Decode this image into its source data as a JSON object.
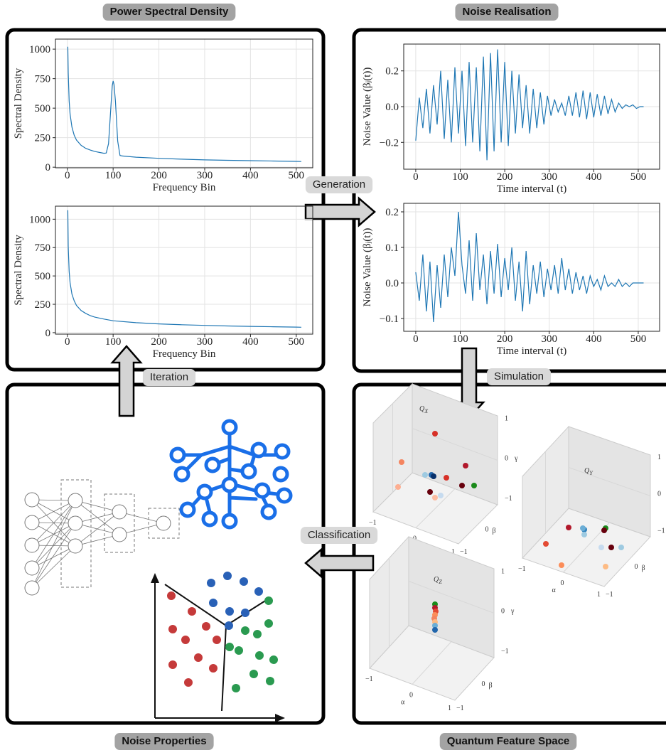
{
  "panels": {
    "psd": "Power Spectral Density",
    "noise": "Noise Realisation",
    "properties": "Noise Properties",
    "feature_space": "Quantum Feature Space"
  },
  "arrows": {
    "generation": "Generation",
    "simulation": "Simulation",
    "classification": "Classification",
    "iteration": "Iteration"
  },
  "chart_data": [
    {
      "type": "line",
      "xlabel": "Frequency Bin",
      "ylabel": "Spectral Density",
      "color": "#1f77b4",
      "x": [
        1,
        2,
        4,
        6,
        10,
        15,
        20,
        30,
        40,
        50,
        60,
        70,
        80,
        85,
        90,
        95,
        98,
        100,
        102,
        105,
        110,
        115,
        120,
        150,
        200,
        250,
        300,
        350,
        400,
        450,
        500,
        511
      ],
      "values": [
        1020,
        800,
        560,
        450,
        340,
        270,
        230,
        185,
        160,
        145,
        133,
        125,
        118,
        120,
        200,
        500,
        690,
        730,
        700,
        560,
        220,
        100,
        95,
        85,
        75,
        68,
        62,
        58,
        55,
        52,
        49,
        48
      ],
      "xlim": [
        -26,
        536
      ],
      "ylim": [
        -5,
        1085
      ],
      "xticks": [
        0,
        100,
        200,
        300,
        400,
        500
      ],
      "yticks": [
        0,
        250,
        500,
        750,
        1000
      ],
      "grid": true
    },
    {
      "type": "line",
      "xlabel": "Frequency Bin",
      "ylabel": "Spectral Density",
      "color": "#1f77b4",
      "x": [
        1,
        2,
        4,
        6,
        10,
        15,
        20,
        30,
        40,
        50,
        60,
        80,
        100,
        150,
        200,
        250,
        300,
        350,
        400,
        450,
        500,
        511
      ],
      "values": [
        1080,
        760,
        540,
        440,
        340,
        280,
        240,
        195,
        170,
        150,
        137,
        120,
        105,
        88,
        77,
        70,
        64,
        59,
        55,
        52,
        49,
        48
      ],
      "xlim": [
        -26,
        536
      ],
      "ylim": [
        -13,
        1115
      ],
      "xticks": [
        0,
        100,
        200,
        300,
        400,
        500
      ],
      "yticks": [
        0,
        250,
        500,
        750,
        1000
      ],
      "grid": true
    },
    {
      "type": "line",
      "xlabel": "Time interval (t)",
      "ylabel": "Noise Value (βⱼ(t))",
      "color": "#1f77b4",
      "x": [
        0,
        8,
        16,
        24,
        32,
        40,
        48,
        56,
        64,
        72,
        80,
        88,
        96,
        104,
        112,
        120,
        128,
        136,
        144,
        152,
        160,
        168,
        176,
        184,
        192,
        200,
        208,
        216,
        224,
        232,
        240,
        248,
        256,
        264,
        272,
        280,
        288,
        296,
        304,
        312,
        320,
        328,
        336,
        344,
        352,
        360,
        368,
        376,
        384,
        392,
        400,
        408,
        416,
        424,
        432,
        440,
        448,
        456,
        464,
        472,
        480,
        488,
        496,
        504,
        512
      ],
      "values": [
        -0.19,
        0.05,
        -0.12,
        0.1,
        -0.15,
        0.12,
        -0.1,
        0.2,
        -0.18,
        0.15,
        -0.2,
        0.22,
        -0.15,
        0.2,
        -0.22,
        0.25,
        -0.2,
        0.22,
        -0.25,
        0.28,
        -0.3,
        0.3,
        -0.25,
        0.32,
        -0.2,
        0.25,
        -0.22,
        0.2,
        -0.15,
        0.18,
        -0.12,
        0.12,
        -0.15,
        0.1,
        -0.12,
        0.08,
        -0.1,
        0.06,
        -0.05,
        0.04,
        -0.03,
        0.02,
        -0.05,
        0.06,
        -0.05,
        0.08,
        -0.06,
        0.09,
        -0.07,
        0.08,
        -0.06,
        0.07,
        -0.05,
        0.06,
        -0.04,
        0.04,
        -0.03,
        0.02,
        -0.01,
        0.01,
        0,
        0.01,
        -0.01,
        0,
        0
      ],
      "xlim": [
        -27,
        548
      ],
      "ylim": [
        -0.35,
        0.35
      ],
      "xticks": [
        0,
        100,
        200,
        300,
        400,
        500
      ],
      "yticks": [
        {
          "value": -0.2,
          "label": "−0.2"
        },
        {
          "value": 0,
          "label": "0.0"
        },
        0.2
      ],
      "grid": true
    },
    {
      "type": "line",
      "xlabel": "Time interval (t)",
      "ylabel": "Noise Value (βⱼ(t))",
      "color": "#1f77b4",
      "x": [
        0,
        8,
        16,
        24,
        32,
        40,
        48,
        56,
        64,
        72,
        80,
        88,
        96,
        104,
        112,
        120,
        128,
        136,
        144,
        152,
        160,
        168,
        176,
        184,
        192,
        200,
        208,
        216,
        224,
        232,
        240,
        248,
        256,
        264,
        272,
        280,
        288,
        296,
        304,
        312,
        320,
        328,
        336,
        344,
        352,
        360,
        368,
        376,
        384,
        392,
        400,
        408,
        416,
        424,
        432,
        440,
        448,
        456,
        464,
        472,
        480,
        488,
        496,
        504,
        512
      ],
      "values": [
        0.03,
        -0.05,
        0.08,
        -0.08,
        0.06,
        -0.11,
        0.05,
        -0.07,
        0.08,
        -0.04,
        0.1,
        0.02,
        0.2,
        0.05,
        -0.03,
        0.12,
        -0.05,
        0.14,
        -0.02,
        0.08,
        -0.06,
        0.09,
        -0.03,
        0.11,
        -0.04,
        0.07,
        -0.02,
        0.1,
        -0.05,
        0.06,
        -0.08,
        0.09,
        -0.06,
        0.05,
        -0.03,
        0.06,
        -0.04,
        0.04,
        -0.02,
        0.05,
        -0.03,
        0.07,
        -0.02,
        0.04,
        -0.03,
        0.03,
        -0.02,
        0.02,
        -0.03,
        0.02,
        -0.01,
        0.01,
        -0.02,
        0.02,
        -0.01,
        0,
        -0.01,
        0.01,
        -0.01,
        0,
        -0.01,
        0,
        0,
        0,
        0
      ],
      "xlim": [
        -27,
        548
      ],
      "ylim": [
        -0.136,
        0.224
      ],
      "xticks": [
        0,
        100,
        200,
        300,
        400,
        500
      ],
      "yticks": [
        {
          "value": -0.1,
          "label": "−0.1"
        },
        {
          "value": 0,
          "label": "0.0"
        },
        0.1,
        0.2
      ],
      "grid": true
    }
  ],
  "feature_space": {
    "plots": [
      {
        "title": "Q",
        "subscript": "X"
      },
      {
        "title": "Q",
        "subscript": "Y"
      },
      {
        "title": "Q",
        "subscript": "Z"
      }
    ],
    "axis_labels": [
      "α",
      "β",
      "γ"
    ],
    "tick_labels": [
      "−1",
      "0",
      "1"
    ]
  }
}
